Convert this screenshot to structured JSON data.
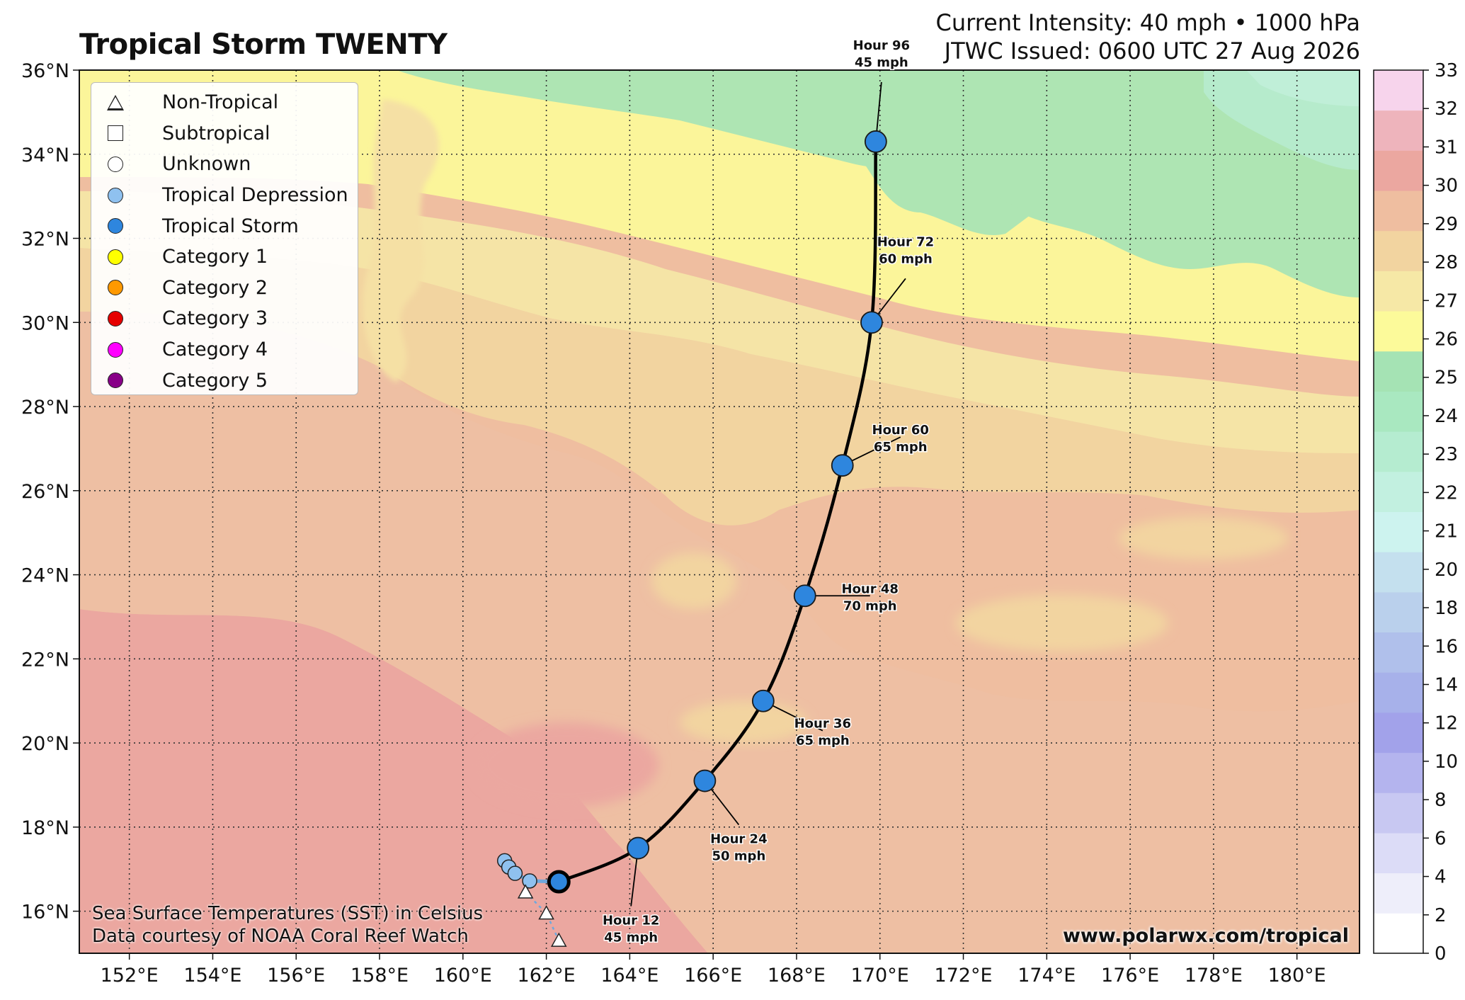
{
  "header": {
    "title": "Tropical Storm TWENTY",
    "intensity": "Current Intensity: 40 mph • 1000 hPa",
    "issued": "JTWC Issued: 0600 UTC 27 Aug 2026"
  },
  "legend": {
    "items": [
      {
        "label": "Non-Tropical",
        "symbol": "triangle",
        "color": "#ffffff"
      },
      {
        "label": "Subtropical",
        "symbol": "square",
        "color": "#ffffff"
      },
      {
        "label": "Unknown",
        "symbol": "circle",
        "color": "#ffffff"
      },
      {
        "label": "Tropical Depression",
        "symbol": "circle",
        "color": "#8fc1ef"
      },
      {
        "label": "Tropical Storm",
        "symbol": "circle",
        "color": "#2e86de"
      },
      {
        "label": "Category 1",
        "symbol": "circle",
        "color": "#ffff00"
      },
      {
        "label": "Category 2",
        "symbol": "circle",
        "color": "#ff9900"
      },
      {
        "label": "Category 3",
        "symbol": "circle",
        "color": "#e60000"
      },
      {
        "label": "Category 4",
        "symbol": "circle",
        "color": "#ff00ff"
      },
      {
        "label": "Category 5",
        "symbol": "circle",
        "color": "#880088"
      }
    ]
  },
  "map": {
    "lon_range": [
      150.8,
      181.5
    ],
    "lat_range": [
      15,
      36
    ],
    "lon_ticks": [
      "152°E",
      "154°E",
      "156°E",
      "158°E",
      "160°E",
      "162°E",
      "164°E",
      "166°E",
      "168°E",
      "170°E",
      "172°E",
      "174°E",
      "176°E",
      "178°E",
      "180°E"
    ],
    "lat_ticks": [
      "16°N",
      "18°N",
      "20°N",
      "22°N",
      "24°N",
      "26°N",
      "28°N",
      "30°N",
      "32°N",
      "34°N",
      "36°N"
    ],
    "gridlines": "dotted"
  },
  "track": {
    "past": [
      {
        "lon": 161.0,
        "lat": 17.2,
        "type": "Tropical Depression"
      },
      {
        "lon": 161.1,
        "lat": 17.05,
        "type": "Tropical Depression"
      },
      {
        "lon": 161.25,
        "lat": 16.9,
        "type": "Tropical Depression"
      },
      {
        "lon": 161.6,
        "lat": 16.72,
        "type": "Tropical Depression"
      },
      {
        "lon": 161.5,
        "lat": 16.45,
        "type": "Non-Tropical"
      },
      {
        "lon": 162.0,
        "lat": 15.95,
        "type": "Non-Tropical"
      },
      {
        "lon": 162.3,
        "lat": 15.3,
        "type": "Non-Tropical"
      }
    ],
    "current": {
      "lon": 162.3,
      "lat": 16.7
    },
    "forecast": [
      {
        "hour": "Hour 12",
        "wind": "45 mph",
        "lon": 164.2,
        "lat": 17.5
      },
      {
        "hour": "Hour 24",
        "wind": "50 mph",
        "lon": 165.8,
        "lat": 19.1
      },
      {
        "hour": "Hour 36",
        "wind": "65 mph",
        "lon": 167.2,
        "lat": 21.0
      },
      {
        "hour": "Hour 48",
        "wind": "70 mph",
        "lon": 168.2,
        "lat": 23.5
      },
      {
        "hour": "Hour 60",
        "wind": "65 mph",
        "lon": 169.1,
        "lat": 26.6
      },
      {
        "hour": "Hour 72",
        "wind": "60 mph",
        "lon": 169.8,
        "lat": 30.0
      },
      {
        "hour": "Hour 96",
        "wind": "45 mph",
        "lon": 169.9,
        "lat": 34.3
      }
    ]
  },
  "colorbar": {
    "ticks": [
      "0",
      "2",
      "4",
      "6",
      "8",
      "10",
      "12",
      "14",
      "16",
      "18",
      "20",
      "21",
      "22",
      "23",
      "24",
      "25",
      "26",
      "27",
      "28",
      "29",
      "30",
      "31",
      "32",
      "33"
    ],
    "colors": [
      "#ffffff",
      "#eeeefa",
      "#dcdcf7",
      "#c8c8f2",
      "#b4b4ee",
      "#a2a2ea",
      "#a7b1ea",
      "#b0c0eb",
      "#bad0ec",
      "#c4e0ee",
      "#cdf3ef",
      "#c2f0e0",
      "#b5ecd0",
      "#a9e8c0",
      "#a5e3b4",
      "#fcfa9a",
      "#f6e8a6",
      "#f2d4a0",
      "#efbea0",
      "#eba7a0",
      "#eeb4bc",
      "#f7d4ec"
    ],
    "unit": "SST (°C)"
  },
  "footer": {
    "sst_line1": "Sea Surface Temperatures (SST) in Celsius",
    "sst_line2": "Data courtesy of NOAA Coral Reef Watch",
    "site": "www.polarwx.com/tropical"
  }
}
